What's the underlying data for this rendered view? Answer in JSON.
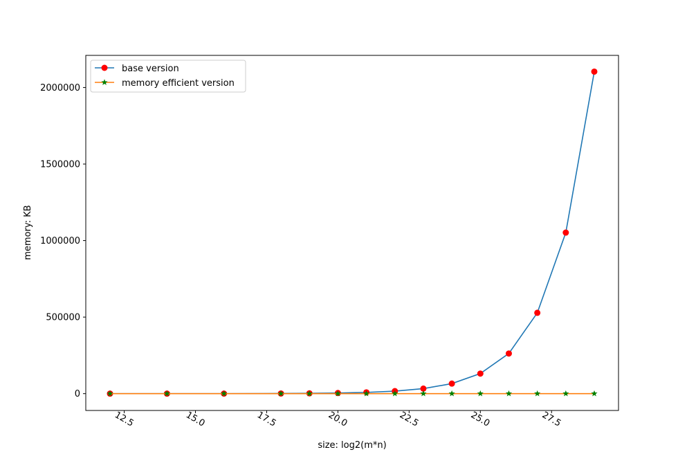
{
  "chart_data": {
    "type": "line",
    "title": "",
    "xlabel": "size: log2(m*n)",
    "ylabel": "memory: KB",
    "xlim": [
      11.15,
      29.85
    ],
    "ylim": [
      -110000,
      2210000
    ],
    "x_ticks": [
      12.5,
      15.0,
      17.5,
      20.0,
      22.5,
      25.0,
      27.5
    ],
    "x_tick_labels": [
      "12.5",
      "15.0",
      "17.5",
      "20.0",
      "22.5",
      "25.0",
      "27.5"
    ],
    "y_ticks": [
      0,
      500000,
      1000000,
      1500000,
      2000000
    ],
    "y_tick_labels": [
      "0",
      "500000",
      "1000000",
      "1500000",
      "2000000"
    ],
    "grid": false,
    "legend_position": "top-left",
    "x": [
      12,
      14,
      16,
      18,
      19,
      20,
      21,
      22,
      23,
      24,
      25,
      26,
      27,
      28,
      29
    ],
    "series": [
      {
        "name": "base version",
        "line_color": "#1f77b4",
        "marker": "circle",
        "marker_color": "#ff0000",
        "values": [
          128,
          128,
          256,
          1024,
          2048,
          4096,
          8192,
          16384,
          32768,
          65536,
          131072,
          262144,
          528000,
          1052000,
          2104000
        ]
      },
      {
        "name": "memory efficient version",
        "line_color": "#ff7f0e",
        "marker": "star",
        "marker_color": "#008000",
        "values": [
          100,
          100,
          100,
          100,
          100,
          100,
          100,
          100,
          100,
          100,
          100,
          100,
          100,
          100,
          100
        ]
      }
    ]
  }
}
